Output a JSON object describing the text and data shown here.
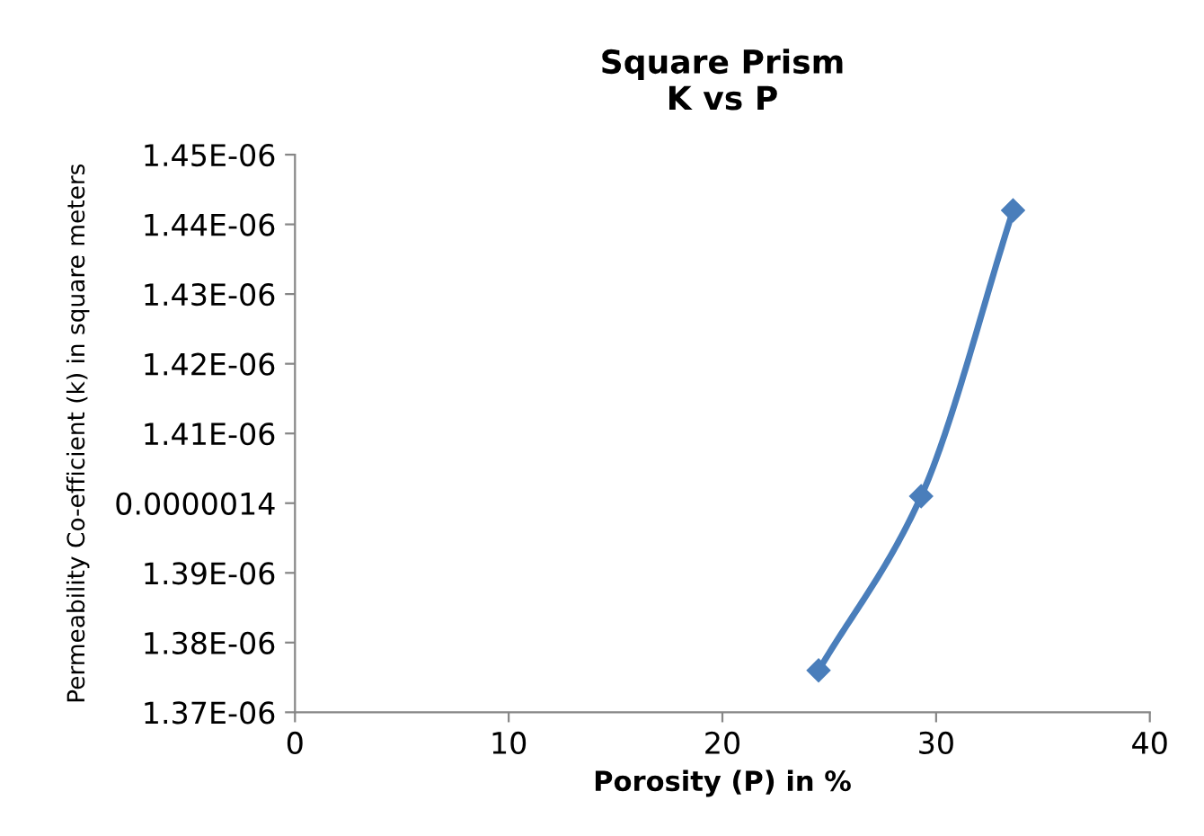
{
  "chart_data": {
    "type": "line",
    "title": "Square Prism\nK vs P",
    "xlabel": "Porosity (P) in %",
    "ylabel": "Permeability Co-efficient (k) in square meters",
    "x": [
      24.5,
      29.3,
      33.6
    ],
    "series": [
      {
        "color": "#4a7ebb",
        "values": [
          1.376e-06,
          1.401e-06,
          1.442e-06
        ]
      }
    ],
    "xlim": [
      0,
      40
    ],
    "xticks": [
      0,
      10,
      20,
      30,
      40
    ],
    "ylim": [
      1.37e-06,
      1.45e-06
    ],
    "yticks": [
      {
        "value": 1.37e-06,
        "label": "1.37E-06"
      },
      {
        "value": 1.38e-06,
        "label": "1.38E-06"
      },
      {
        "value": 1.39e-06,
        "label": "1.39E-06"
      },
      {
        "value": 1.4e-06,
        "label": "0.0000014"
      },
      {
        "value": 1.41e-06,
        "label": "1.41E-06"
      },
      {
        "value": 1.42e-06,
        "label": "1.42E-06"
      },
      {
        "value": 1.43e-06,
        "label": "1.43E-06"
      },
      {
        "value": 1.44e-06,
        "label": "1.44E-06"
      },
      {
        "value": 1.45e-06,
        "label": "1.45E-06"
      }
    ],
    "grid": false,
    "legend": false,
    "marker": "diamond",
    "line_style": "solid"
  }
}
